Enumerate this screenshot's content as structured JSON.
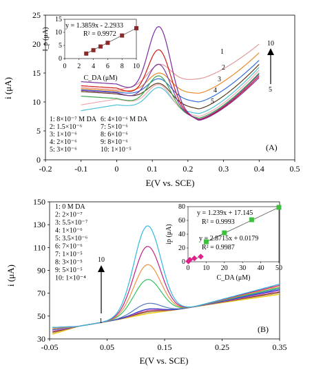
{
  "chart_data": [
    {
      "type": "line",
      "panel_label": "(A)",
      "xlabel": "E(V vs. SCE)",
      "ylabel": "i (μA)",
      "xlim": [
        -0.2,
        0.5
      ],
      "ylim": [
        0,
        25
      ],
      "xticks": [
        "-0.2",
        "-0.1",
        "0",
        "0.1",
        "0.2",
        "0.3",
        "0.4",
        "0.5"
      ],
      "yticks": [
        "0",
        "5",
        "10",
        "15",
        "20",
        "25"
      ],
      "x_range": [
        -0.1,
        0.4
      ],
      "legend_lines": [
        "1: 8×10⁻⁷ M DA",
        "2: 1.5×10⁻⁶",
        "3: 1×10⁻⁶",
        "4: 2×10⁻⁶",
        "5: 3×10⁻⁶",
        "6: 4×10⁻⁶ M DA",
        "7: 5×10⁻⁶",
        "8: 6×10⁻⁶",
        "9: 8×10⁻⁶",
        "10: 1×10⁻⁵"
      ],
      "curve_labels": [
        "1",
        "2",
        "3",
        "4",
        "5"
      ],
      "arrow_labels": {
        "top": "10",
        "bottom": "5"
      },
      "series": [
        {
          "color": "#e09a9a",
          "start": 12.5,
          "peak": 16.5,
          "valley": 14.0,
          "end": 20.0
        },
        {
          "color": "#e88a2c",
          "start": 12.3,
          "peak": 15.0,
          "valley": 11.5,
          "end": 18.5
        },
        {
          "color": "#2f6fd6",
          "start": 12.1,
          "peak": 14.0,
          "valley": 10.0,
          "end": 17.2
        },
        {
          "color": "#5a3a1a",
          "start": 11.8,
          "peak": 13.2,
          "valley": 8.8,
          "end": 16.5
        },
        {
          "color": "#4cc2d6",
          "start": 8.5,
          "peak": 12.5,
          "valley": 8.0,
          "end": 16.0
        },
        {
          "color": "#f0a8b0",
          "start": 9.5,
          "peak": 13.0,
          "valley": 7.5,
          "end": 15.5
        },
        {
          "color": "#3aa84a",
          "start": 11.0,
          "peak": 14.5,
          "valley": 7.2,
          "end": 15.0
        },
        {
          "color": "#7a3aa8",
          "start": 12.0,
          "peak": 16.5,
          "valley": 7.0,
          "end": 14.8
        },
        {
          "color": "#d01818",
          "start": 12.8,
          "peak": 19.0,
          "valley": 6.9,
          "end": 14.5
        },
        {
          "color": "#7a2aa0",
          "start": 13.5,
          "peak": 23.0,
          "valley": 6.8,
          "end": 14.2
        }
      ],
      "inset": {
        "xlabel": "C_DA (μM)",
        "ylabel": "I_p (μA)",
        "xlim": [
          0,
          10
        ],
        "ylim": [
          0,
          15
        ],
        "xticks": [
          "0",
          "2",
          "4",
          "6",
          "8",
          "10"
        ],
        "yticks": [
          "0",
          "5",
          "10",
          "15"
        ],
        "equation": "y = 1.3859x - 2.2933",
        "r2": "R² = 0.9972",
        "points_x": [
          3,
          4,
          5,
          6,
          8,
          10
        ],
        "points_y": [
          1.9,
          3.2,
          4.6,
          6.0,
          8.8,
          11.6
        ]
      }
    },
    {
      "type": "line",
      "panel_label": "(B)",
      "xlabel": "E(V vs. SCE)",
      "ylabel": "i (μA)",
      "xlim": [
        -0.05,
        0.35
      ],
      "ylim": [
        30,
        150
      ],
      "xticks": [
        "-0.05",
        "0.05",
        "0.15",
        "0.25",
        "0.35"
      ],
      "yticks": [
        "30",
        "50",
        "70",
        "90",
        "110",
        "130",
        "150"
      ],
      "x_range": [
        -0.045,
        0.35
      ],
      "legend_lines": [
        "1: 0 M DA",
        "2: 2×10⁻⁷",
        "3: 5.5×10⁻⁷",
        "4: 1×10⁻⁶",
        "5: 3.5×10⁻⁶",
        "6: 7×10⁻⁶",
        "7: 1×10⁻⁵",
        "8: 3×10⁻⁵",
        "9: 5×10⁻⁵",
        "10: 1×10⁻⁴"
      ],
      "arrow_labels": {
        "top": "10",
        "bottom": "1"
      },
      "series": [
        {
          "color": "#f0d000",
          "start": 34,
          "peak": 52,
          "valley": 58,
          "end": 69
        },
        {
          "color": "#c8a070",
          "start": 35,
          "peak": 53,
          "valley": 58,
          "end": 70
        },
        {
          "color": "#7a2a10",
          "start": 36,
          "peak": 54,
          "valley": 58,
          "end": 71
        },
        {
          "color": "#e06bd0",
          "start": 37,
          "peak": 55,
          "valley": 58,
          "end": 72
        },
        {
          "color": "#2030c0",
          "start": 38,
          "peak": 56,
          "valley": 58,
          "end": 73
        },
        {
          "color": "#4a78c0",
          "start": 38,
          "peak": 61,
          "valley": 58,
          "end": 74
        },
        {
          "color": "#30c060",
          "start": 39,
          "peak": 82,
          "valley": 58,
          "end": 75
        },
        {
          "color": "#f09040",
          "start": 39,
          "peak": 95,
          "valley": 58,
          "end": 76
        },
        {
          "color": "#c02080",
          "start": 40,
          "peak": 111,
          "valley": 58,
          "end": 77
        },
        {
          "color": "#30b8e0",
          "start": 40,
          "peak": 129,
          "valley": 58,
          "end": 78
        }
      ],
      "inset": {
        "xlabel": "C_DA (μM)",
        "ylabel": "ip (μA)",
        "xlim": [
          0,
          50
        ],
        "ylim": [
          0,
          80
        ],
        "xticks": [
          "0",
          "10",
          "20",
          "30",
          "40",
          "50"
        ],
        "yticks": [
          "0",
          "20",
          "40",
          "60",
          "80"
        ],
        "equation_high": "y = 1.239x + 17.145",
        "r2_high": "R² = 0.9993",
        "equation_low": "y = 2.8715x + 0.0179",
        "r2_low": "R² = 0.9987",
        "points_green_x": [
          10,
          20,
          35,
          50
        ],
        "points_green_y": [
          29,
          42,
          61,
          79
        ],
        "points_pink_x": [
          0.2,
          0.55,
          1,
          3.5,
          7
        ],
        "points_pink_y": [
          0.6,
          1.6,
          2.9,
          5.0,
          7.5
        ]
      }
    }
  ]
}
